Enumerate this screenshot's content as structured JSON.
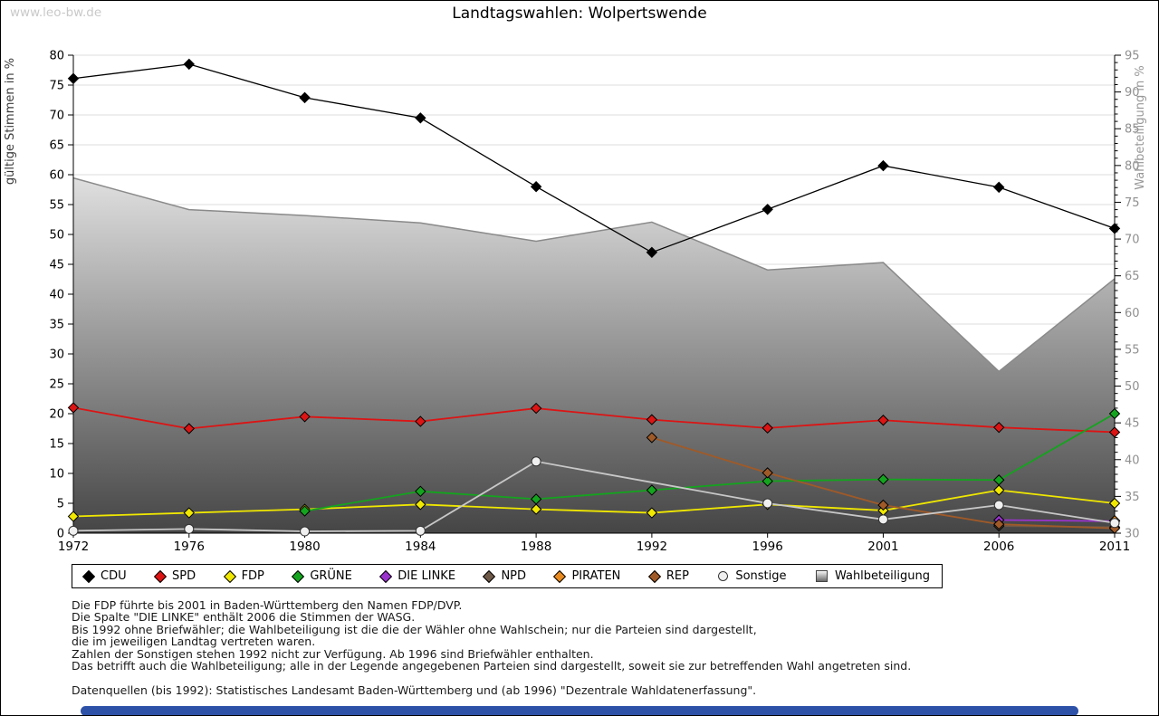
{
  "page": {
    "watermark": "www.leo-bw.de",
    "title": "Landtagswahlen: Wolpertswende"
  },
  "chart_data": {
    "type": "line",
    "title": "Landtagswahlen: Wolpertswende",
    "x_labels": [
      "1972",
      "1976",
      "1980",
      "1984",
      "1988",
      "1992",
      "1996",
      "2001",
      "2006",
      "2011"
    ],
    "left_axis": {
      "label": "gültige Stimmen in %",
      "min": 0,
      "max": 80,
      "tick_step": 5
    },
    "right_axis": {
      "label": "Wahlbeteiligung in %",
      "min": 30,
      "max": 95,
      "tick_step": 5,
      "minor_step": 1
    },
    "grid": true,
    "legend_position": "bottom",
    "series": [
      {
        "name": "CDU",
        "color": "#000000",
        "marker": "diamond",
        "axis": "left",
        "values": [
          76.1,
          78.5,
          72.9,
          69.5,
          58.0,
          47.0,
          54.2,
          61.5,
          57.9,
          51.0
        ]
      },
      {
        "name": "SPD",
        "color": "#dc1414",
        "marker": "diamond",
        "axis": "left",
        "values": [
          21.0,
          17.5,
          19.5,
          18.7,
          20.9,
          19.0,
          17.6,
          18.9,
          17.7,
          16.9
        ]
      },
      {
        "name": "FDP",
        "color": "#f0e800",
        "marker": "diamond",
        "axis": "left",
        "values": [
          2.8,
          3.4,
          4.0,
          4.8,
          4.0,
          3.4,
          4.8,
          3.8,
          7.2,
          5.0
        ]
      },
      {
        "name": "GRÜNE",
        "color": "#14a41e",
        "marker": "diamond",
        "axis": "left",
        "values": [
          null,
          null,
          3.7,
          7.0,
          5.7,
          7.2,
          8.7,
          9.0,
          8.9,
          20.0
        ]
      },
      {
        "name": "DIE LINKE",
        "color": "#9933cc",
        "marker": "diamond",
        "axis": "left",
        "values": [
          null,
          null,
          null,
          null,
          null,
          null,
          null,
          null,
          2.2,
          2.0
        ]
      },
      {
        "name": "NPD",
        "color": "#6e5948",
        "marker": "diamond",
        "axis": "left",
        "values": [
          null,
          null,
          null,
          null,
          null,
          null,
          null,
          null,
          1.2,
          1.0
        ]
      },
      {
        "name": "PIRATEN",
        "color": "#e78a20",
        "marker": "diamond",
        "axis": "left",
        "values": [
          null,
          null,
          null,
          null,
          null,
          null,
          null,
          null,
          null,
          2.1
        ]
      },
      {
        "name": "REP",
        "color": "#a05a28",
        "marker": "diamond",
        "axis": "left",
        "values": [
          null,
          null,
          null,
          null,
          null,
          16.0,
          10.1,
          4.7,
          1.5,
          0.8
        ]
      },
      {
        "name": "Sonstige",
        "color": "#c8c8c8",
        "marker": "circle",
        "marker_fill": "#f0f0f0",
        "axis": "left",
        "values": [
          0.4,
          0.7,
          0.3,
          0.4,
          12.0,
          null,
          5.0,
          2.3,
          4.7,
          1.7
        ]
      }
    ],
    "turnout_area": {
      "name": "Wahlbeteiligung",
      "axis": "right",
      "style": "gray-gradient-area",
      "edge_color": "#8a8a8a",
      "values": [
        78.3,
        74.0,
        73.2,
        72.2,
        69.7,
        72.3,
        65.8,
        66.8,
        52.0,
        64.6
      ]
    }
  },
  "footnotes": {
    "lines": [
      "Die FDP führte bis 2001 in Baden-Württemberg den Namen FDP/DVP.",
      "Die Spalte \"DIE LINKE\" enthält 2006 die Stimmen der WASG.",
      "Bis 1992 ohne Briefwähler; die Wahlbeteiligung ist die die der Wähler ohne Wahlschein; nur die Parteien sind dargestellt,",
      "die im jeweiligen Landtag vertreten waren.",
      "Zahlen der Sonstigen stehen 1992 nicht zur Verfügung. Ab 1996 sind Briefwähler enthalten.",
      "Das betrifft auch die Wahlbeteiligung; alle in der Legende angegebenen Parteien sind dargestellt, soweit sie zur betreffenden Wahl angetreten sind.",
      "",
      "Datenquellen (bis 1992): Statistisches Landesamt Baden-Württemberg und (ab 1996) \"Dezentrale Wahldatenerfassung\"."
    ]
  }
}
